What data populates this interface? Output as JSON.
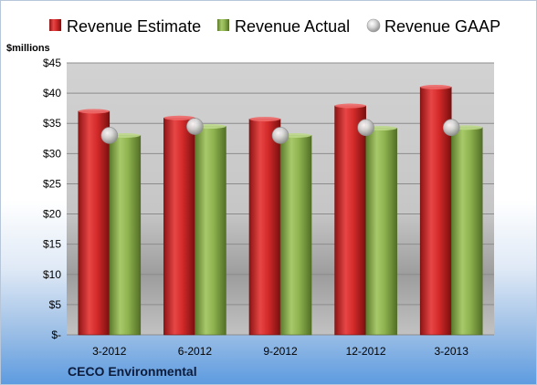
{
  "chart_data": {
    "type": "bar",
    "title": "",
    "unit_label": "$millions",
    "company": "CECO Environmental",
    "categories": [
      "3-2012",
      "6-2012",
      "9-2012",
      "12-2012",
      "3-2013"
    ],
    "series": [
      {
        "name": "Revenue Estimate",
        "type": "bar",
        "color": "#d42a2a",
        "values": [
          37.0,
          35.9,
          35.7,
          37.9,
          41.0
        ]
      },
      {
        "name": "Revenue Actual",
        "type": "bar",
        "color": "#8fb34f",
        "values": [
          33.0,
          34.5,
          33.0,
          34.2,
          34.3
        ]
      },
      {
        "name": "Revenue GAAP",
        "type": "marker",
        "color": "#c7c7c7",
        "values": [
          33.0,
          34.5,
          33.0,
          34.3,
          34.3
        ]
      }
    ],
    "y_ticks": [
      "$-",
      "$5",
      "$10",
      "$15",
      "$20",
      "$25",
      "$30",
      "$35",
      "$40",
      "$45"
    ],
    "ylim": [
      0,
      45
    ],
    "grid": true,
    "legend": "top"
  }
}
